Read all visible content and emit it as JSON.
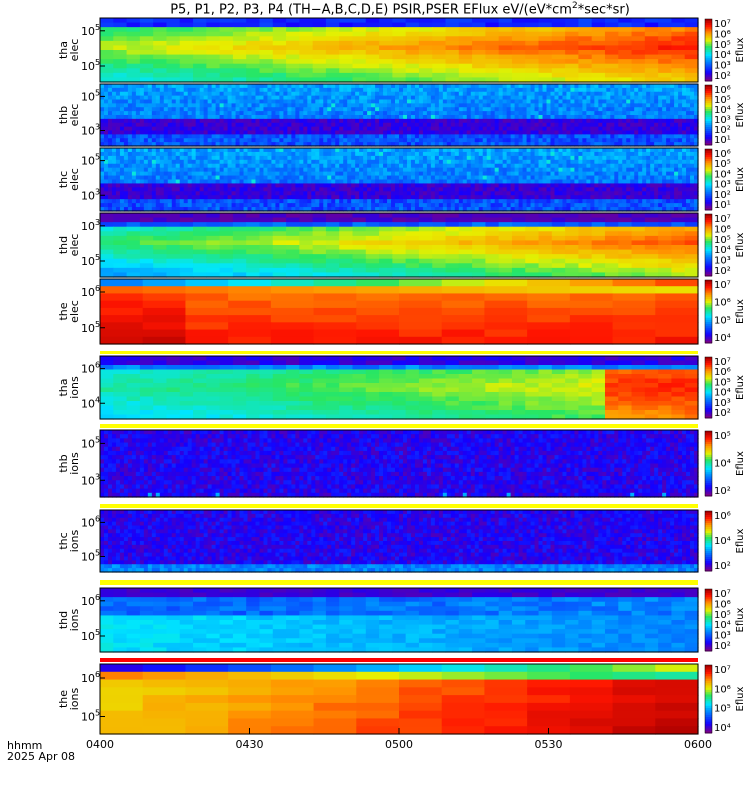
{
  "title_main": "P5, P1, P2, P3, P4 (TH−A,B,C,D,E) PSIR,PSER EFlux eV/(eV*cm",
  "title_sup": "2",
  "title_tail": "*sec*sr)",
  "footer": {
    "time_label": "hhmm",
    "date_label": "2025 Apr 08"
  },
  "chart_data": {
    "type": "heatmap",
    "x_ticks": [
      "0400",
      "0430",
      "0500",
      "0530",
      "0600"
    ],
    "xlim": [
      "0400",
      "0600"
    ],
    "colorbar_label": "Eflux",
    "panels": [
      {
        "probe": "tha",
        "species": "elec",
        "ylabel": [
          "tha",
          "elec"
        ],
        "yticks": [
          {
            "base": "10",
            "exp": "5"
          },
          {
            "base": "10",
            "exp": "5"
          }
        ],
        "cbar_ticks": [
          "10⁷",
          "10⁶",
          "10⁵",
          "10⁴",
          "10³",
          "10²"
        ],
        "variant": "tha_e"
      },
      {
        "probe": "thb",
        "species": "elec",
        "ylabel": [
          "thb",
          "elec"
        ],
        "yticks": [
          {
            "base": "10",
            "exp": "5"
          },
          {
            "base": "10",
            "exp": "3"
          }
        ],
        "cbar_ticks": [
          "10⁶",
          "10⁵",
          "10⁴",
          "10³",
          "10²",
          "10¹"
        ],
        "variant": "noise_e"
      },
      {
        "probe": "thc",
        "species": "elec",
        "ylabel": [
          "thc",
          "elec"
        ],
        "yticks": [
          {
            "base": "10",
            "exp": "5"
          },
          {
            "base": "10",
            "exp": "3"
          }
        ],
        "cbar_ticks": [
          "10⁶",
          "10⁵",
          "10⁴",
          "10³",
          "10²",
          "10¹"
        ],
        "variant": "noise_e2"
      },
      {
        "probe": "thd",
        "species": "elec",
        "ylabel": [
          "thd",
          "elec"
        ],
        "yticks": [
          {
            "base": "10",
            "exp": "3"
          },
          {
            "base": "10",
            "exp": "5"
          }
        ],
        "cbar_ticks": [
          "10⁷",
          "10⁶",
          "10⁵",
          "10⁴",
          "10³",
          "10²"
        ],
        "variant": "thd_e"
      },
      {
        "probe": "the",
        "species": "elec",
        "ylabel": [
          "the",
          "elec"
        ],
        "yticks": [
          {
            "base": "10",
            "exp": "6"
          },
          {
            "base": "10",
            "exp": "5"
          }
        ],
        "cbar_ticks": [
          "10⁷",
          "10⁶",
          "10⁵",
          "10⁴"
        ],
        "variant": "the_e"
      },
      {
        "probe": "tha",
        "species": "ions",
        "ylabel": [
          "tha",
          "ions"
        ],
        "yticks": [
          {
            "base": "10",
            "exp": "6"
          },
          {
            "base": "10",
            "exp": "4"
          }
        ],
        "cbar_ticks": [
          "10⁷",
          "10⁶",
          "10⁵",
          "10⁴",
          "10³",
          "10²"
        ],
        "variant": "tha_i"
      },
      {
        "probe": "thb",
        "species": "ions",
        "ylabel": [
          "thb",
          "ions"
        ],
        "yticks": [
          {
            "base": "10",
            "exp": "5"
          },
          {
            "base": "10",
            "exp": "3"
          }
        ],
        "cbar_ticks": [
          "10⁵",
          "10⁴",
          "10²"
        ],
        "variant": "thb_i"
      },
      {
        "probe": "thc",
        "species": "ions",
        "ylabel": [
          "thc",
          "ions"
        ],
        "yticks": [
          {
            "base": "10",
            "exp": "6"
          },
          {
            "base": "10",
            "exp": "5"
          }
        ],
        "cbar_ticks": [
          "10⁶",
          "10⁴",
          "10²"
        ],
        "variant": "thc_i"
      },
      {
        "probe": "thd",
        "species": "ions",
        "ylabel": [
          "thd",
          "ions"
        ],
        "yticks": [
          {
            "base": "10",
            "exp": "6"
          },
          {
            "base": "10",
            "exp": "5"
          }
        ],
        "cbar_ticks": [
          "10⁷",
          "10⁶",
          "10⁵",
          "10⁴",
          "10³",
          "10²"
        ],
        "variant": "thd_i"
      },
      {
        "probe": "the",
        "species": "ions",
        "ylabel": [
          "the",
          "ions"
        ],
        "yticks": [
          {
            "base": "10",
            "exp": "6"
          },
          {
            "base": "10",
            "exp": "5"
          }
        ],
        "cbar_ticks": [
          "10⁷",
          "10⁶",
          "10⁵",
          "10⁴"
        ],
        "variant": "the_i"
      }
    ]
  }
}
